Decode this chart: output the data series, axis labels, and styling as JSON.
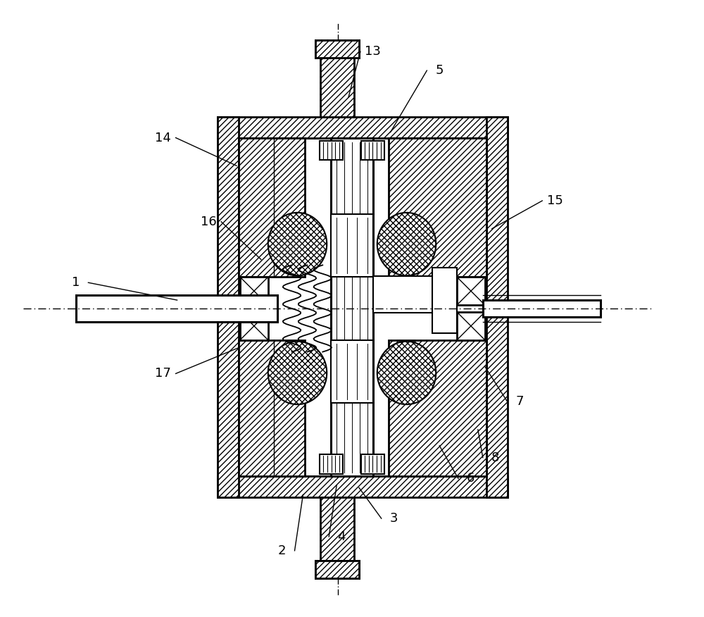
{
  "fig_width": 10.0,
  "fig_height": 8.76,
  "dpi": 100,
  "bg_color": "#ffffff",
  "line_color": "#000000",
  "label_fontsize": 13,
  "annotations": [
    [
      "1",
      1.05,
      4.75,
      2.5,
      4.5
    ],
    [
      "2",
      4.0,
      0.92,
      4.3,
      1.72
    ],
    [
      "3",
      5.6,
      1.38,
      5.1,
      1.82
    ],
    [
      "4",
      4.85,
      1.12,
      4.78,
      1.85
    ],
    [
      "5",
      6.25,
      7.78,
      5.55,
      6.9
    ],
    [
      "6",
      6.7,
      1.95,
      6.25,
      2.42
    ],
    [
      "7",
      7.4,
      3.05,
      6.9,
      3.55
    ],
    [
      "8",
      7.05,
      2.25,
      6.8,
      2.65
    ],
    [
      "13",
      5.3,
      8.05,
      4.95,
      7.4
    ],
    [
      "14",
      2.3,
      6.82,
      3.35,
      6.42
    ],
    [
      "15",
      7.9,
      5.92,
      7.0,
      5.52
    ],
    [
      "16",
      2.95,
      5.62,
      3.7,
      5.08
    ],
    [
      "17",
      2.3,
      3.45,
      3.38,
      3.82
    ]
  ]
}
